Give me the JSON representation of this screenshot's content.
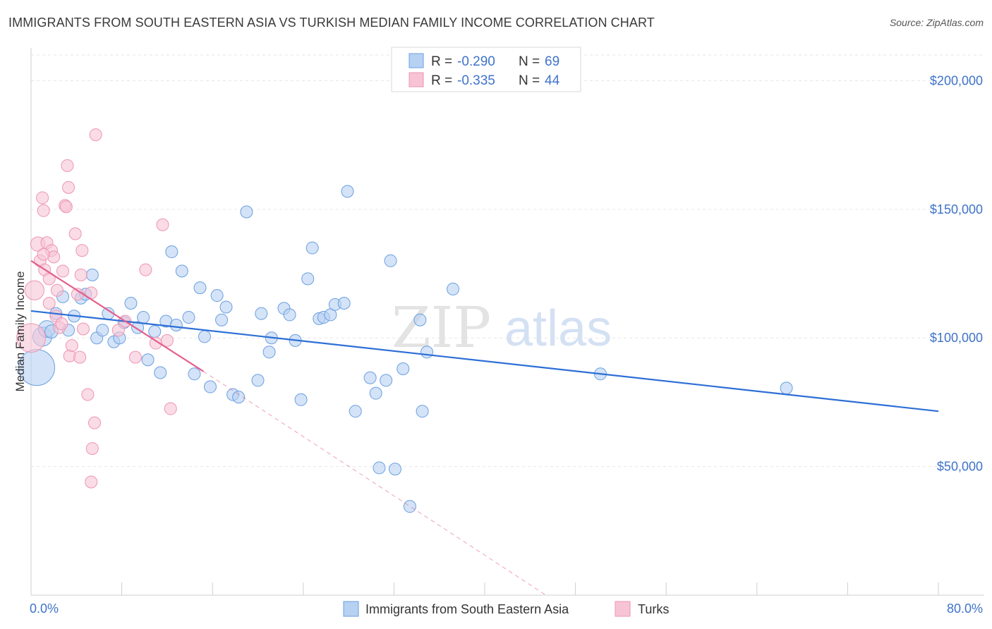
{
  "title": "IMMIGRANTS FROM SOUTH EASTERN ASIA VS TURKISH MEDIAN FAMILY INCOME CORRELATION CHART",
  "source": "Source: ZipAtlas.com",
  "watermark": {
    "zip": "ZIP",
    "atlas": "atlas"
  },
  "legend_top": {
    "rows": [
      {
        "r_label": "R = ",
        "r_value": "-0.290",
        "n_label": "N = ",
        "n_value": "69"
      },
      {
        "r_label": "R = ",
        "r_value": "-0.335",
        "n_label": "N = ",
        "n_value": "44"
      }
    ]
  },
  "chart_data": {
    "type": "scatter",
    "title": "IMMIGRANTS FROM SOUTH EASTERN ASIA VS TURKISH MEDIAN FAMILY INCOME CORRELATION CHART",
    "xlabel": "",
    "ylabel": "Median Family Income",
    "xlim": [
      0,
      80
    ],
    "ylim": [
      0,
      210000
    ],
    "x_tick_labels": [
      "0.0%",
      "80.0%"
    ],
    "y_ticks": [
      50000,
      100000,
      150000,
      200000
    ],
    "y_tick_labels": [
      "$50,000",
      "$100,000",
      "$150,000",
      "$200,000"
    ],
    "grid": true,
    "legend_position": "bottom-center",
    "series": [
      {
        "name": "Immigrants from South Eastern Asia",
        "color": "#6a9fe0",
        "fill": "#b7d1f2",
        "line_color": "#2d6fd6",
        "r": -0.29,
        "n": 69,
        "trend": {
          "x0": 0,
          "y0": 110500,
          "x1": 80,
          "y1": 71500
        },
        "points": [
          [
            0.5,
            88500,
            3.0
          ],
          [
            1.0,
            100500,
            1.6
          ],
          [
            1.4,
            103500,
            1.4
          ],
          [
            1.8,
            102500,
            1.1
          ],
          [
            2.2,
            109500,
            1.0
          ],
          [
            2.8,
            116000,
            1.0
          ],
          [
            3.3,
            103000,
            1.0
          ],
          [
            3.8,
            108500,
            1.0
          ],
          [
            4.4,
            115500,
            1.0
          ],
          [
            4.8,
            117000,
            1.0
          ],
          [
            5.4,
            124500,
            1.0
          ],
          [
            5.8,
            100000,
            1.0
          ],
          [
            6.3,
            103000,
            1.0
          ],
          [
            6.8,
            109500,
            1.0
          ],
          [
            7.3,
            98500,
            1.0
          ],
          [
            7.8,
            100000,
            1.0
          ],
          [
            8.2,
            106000,
            1.0
          ],
          [
            8.8,
            113500,
            1.0
          ],
          [
            9.4,
            104000,
            1.0
          ],
          [
            9.9,
            108000,
            1.0
          ],
          [
            10.3,
            91500,
            1.0
          ],
          [
            10.9,
            102500,
            1.0
          ],
          [
            11.4,
            86500,
            1.0
          ],
          [
            11.9,
            106500,
            1.0
          ],
          [
            12.4,
            133500,
            1.0
          ],
          [
            12.8,
            105000,
            1.0
          ],
          [
            13.3,
            126000,
            1.0
          ],
          [
            13.9,
            108000,
            1.0
          ],
          [
            14.4,
            86000,
            1.0
          ],
          [
            14.9,
            119500,
            1.0
          ],
          [
            15.3,
            100500,
            1.0
          ],
          [
            15.8,
            81000,
            1.0
          ],
          [
            16.4,
            116500,
            1.0
          ],
          [
            16.8,
            107000,
            1.0
          ],
          [
            17.2,
            112000,
            1.0
          ],
          [
            17.8,
            78000,
            1.0
          ],
          [
            18.3,
            77000,
            1.0
          ],
          [
            19.0,
            149000,
            1.0
          ],
          [
            20.0,
            83500,
            1.0
          ],
          [
            20.3,
            109500,
            1.0
          ],
          [
            21.0,
            94500,
            1.0
          ],
          [
            21.2,
            100000,
            1.0
          ],
          [
            22.3,
            111500,
            1.0
          ],
          [
            22.8,
            109000,
            1.0
          ],
          [
            23.3,
            99000,
            1.0
          ],
          [
            23.8,
            76000,
            1.0
          ],
          [
            24.4,
            123000,
            1.0
          ],
          [
            24.8,
            135000,
            1.0
          ],
          [
            25.4,
            107500,
            1.0
          ],
          [
            25.8,
            108000,
            1.0
          ],
          [
            26.4,
            109000,
            1.0
          ],
          [
            26.8,
            113000,
            1.0
          ],
          [
            27.6,
            113500,
            1.0
          ],
          [
            27.9,
            157000,
            1.0
          ],
          [
            28.6,
            71500,
            1.0
          ],
          [
            29.9,
            84500,
            1.0
          ],
          [
            30.4,
            78500,
            1.0
          ],
          [
            30.7,
            49500,
            1.0
          ],
          [
            31.3,
            83500,
            1.0
          ],
          [
            31.7,
            130000,
            1.0
          ],
          [
            32.1,
            49000,
            1.0
          ],
          [
            32.8,
            88000,
            1.0
          ],
          [
            33.4,
            34500,
            1.0
          ],
          [
            34.3,
            107000,
            1.0
          ],
          [
            34.5,
            71500,
            1.0
          ],
          [
            34.9,
            94500,
            1.0
          ],
          [
            37.2,
            119000,
            1.0
          ],
          [
            50.2,
            86000,
            1.0
          ],
          [
            66.6,
            80500,
            1.0
          ]
        ]
      },
      {
        "name": "Turks",
        "color": "#ee94b4",
        "fill": "#f7c4d5",
        "line_color": "#e4608c",
        "r": -0.335,
        "n": 44,
        "trend": {
          "x0": 0,
          "y0": 130000,
          "x1": 15.2,
          "y1": 87000
        },
        "trend_ext": {
          "x0": 15.2,
          "y0": 87000,
          "x1": 45.4,
          "y1": 0
        },
        "points": [
          [
            0.0,
            100000,
            2.4
          ],
          [
            0.3,
            118500,
            1.6
          ],
          [
            0.6,
            136500,
            1.2
          ],
          [
            0.8,
            130000,
            1.0
          ],
          [
            1.0,
            154500,
            1.0
          ],
          [
            1.1,
            149500,
            1.0
          ],
          [
            1.2,
            126500,
            1.0
          ],
          [
            1.4,
            137000,
            1.0
          ],
          [
            1.6,
            123000,
            1.0
          ],
          [
            1.6,
            113500,
            1.0
          ],
          [
            1.8,
            134000,
            1.0
          ],
          [
            2.0,
            131500,
            1.0
          ],
          [
            2.3,
            118500,
            1.0
          ],
          [
            2.5,
            104000,
            1.0
          ],
          [
            2.8,
            126000,
            1.0
          ],
          [
            3.0,
            151500,
            1.0
          ],
          [
            3.2,
            167000,
            1.0
          ],
          [
            3.3,
            158500,
            1.0
          ],
          [
            3.4,
            93000,
            1.0
          ],
          [
            3.6,
            97000,
            1.0
          ],
          [
            3.9,
            140500,
            1.0
          ],
          [
            4.1,
            117000,
            1.0
          ],
          [
            4.3,
            92500,
            1.0
          ],
          [
            4.4,
            124500,
            1.0
          ],
          [
            4.5,
            134000,
            1.0
          ],
          [
            4.6,
            103500,
            1.0
          ],
          [
            5.0,
            78000,
            1.0
          ],
          [
            5.3,
            117500,
            1.0
          ],
          [
            5.3,
            44000,
            1.0
          ],
          [
            5.4,
            57000,
            1.0
          ],
          [
            5.6,
            67000,
            1.0
          ],
          [
            5.7,
            179000,
            1.0
          ],
          [
            7.7,
            103000,
            1.0
          ],
          [
            9.2,
            92500,
            1.0
          ],
          [
            10.1,
            126500,
            1.0
          ],
          [
            11.0,
            98000,
            1.0
          ],
          [
            11.6,
            144000,
            1.0
          ],
          [
            12.0,
            99000,
            1.0
          ],
          [
            12.3,
            72500,
            1.0
          ],
          [
            8.3,
            106500,
            1.0
          ],
          [
            2.2,
            108500,
            1.0
          ],
          [
            2.7,
            105500,
            1.0
          ],
          [
            1.1,
            132500,
            1.0
          ],
          [
            3.1,
            151000,
            1.0
          ]
        ]
      }
    ]
  },
  "bottom_legend": {
    "items": [
      {
        "label": "Immigrants from South Eastern Asia"
      },
      {
        "label": "Turks"
      }
    ]
  }
}
